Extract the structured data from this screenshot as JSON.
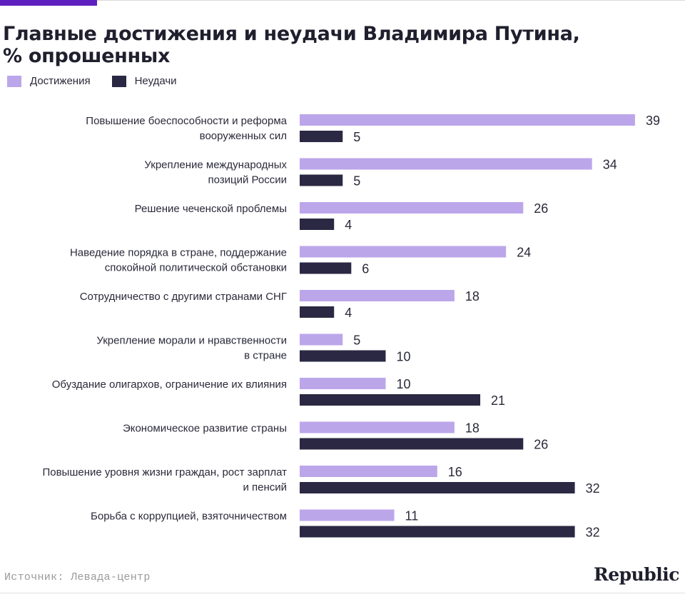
{
  "header": {
    "title_line1": "Главные достижения и неудачи Владимира Путина,",
    "title_line2": "% опрошенных"
  },
  "colors": {
    "accent": "#5d1fbf",
    "achievements": "#bca6ea",
    "failures": "#2a2842"
  },
  "legend": [
    {
      "label": "Достижения"
    },
    {
      "label": "Неудачи"
    }
  ],
  "chart_data": {
    "type": "bar",
    "orientation": "horizontal",
    "categories": [
      [
        "Повышение боеспособности и реформа",
        "вооруженных сил"
      ],
      [
        "Укрепление международных",
        "позиций России"
      ],
      [
        "Решение чеченской проблемы"
      ],
      [
        "Наведение порядка в стране, поддержание",
        "спокойной политической обстановки"
      ],
      [
        "Сотрудничество с другими странами СНГ"
      ],
      [
        "Укрепление морали и нравственности",
        "в стране"
      ],
      [
        "Обуздание олигархов, ограничение их влияния"
      ],
      [
        "Экономическое развитие страны"
      ],
      [
        "Повышение уровня жизни граждан, рост зарплат",
        "и пенсий"
      ],
      [
        "Борьба с коррупцией, взяточничеством"
      ]
    ],
    "series": [
      {
        "name": "Достижения",
        "values": [
          39,
          34,
          26,
          24,
          18,
          5,
          10,
          18,
          16,
          11
        ]
      },
      {
        "name": "Неудачи",
        "values": [
          5,
          5,
          4,
          6,
          4,
          10,
          21,
          26,
          32,
          32
        ]
      }
    ],
    "xlim": [
      0,
      39
    ],
    "grid": false,
    "legend_position": "top-left"
  },
  "footer": {
    "source": "Источник: Левада-центр",
    "brand": "Republic"
  }
}
